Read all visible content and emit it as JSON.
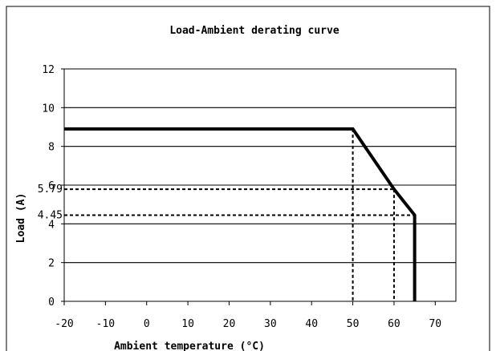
{
  "chart_data": {
    "type": "line",
    "title": "Load-Ambient derating curve",
    "xlabel": "Ambient temperature (°C)",
    "ylabel": "Load (A)",
    "xlim": [
      -20,
      75
    ],
    "ylim": [
      0,
      12
    ],
    "xticks": [
      -20,
      -10,
      0,
      10,
      20,
      30,
      40,
      50,
      60,
      70
    ],
    "yticks": [
      0,
      2,
      4,
      6,
      8,
      10,
      12
    ],
    "grid": "horizontal",
    "series": [
      {
        "x": [
          -20,
          50,
          60,
          65,
          65
        ],
        "y": [
          8.9,
          8.9,
          5.79,
          4.45,
          0
        ]
      }
    ],
    "reference_lines": [
      {
        "x": 50,
        "y": 8.9,
        "label": ""
      },
      {
        "x": 60,
        "y": 5.79,
        "label": "5.79"
      },
      {
        "x": 65,
        "y": 4.45,
        "label": "4.45"
      }
    ],
    "colors": {
      "line": "#000000",
      "grid": "#000000",
      "background": "#ffffff"
    }
  }
}
